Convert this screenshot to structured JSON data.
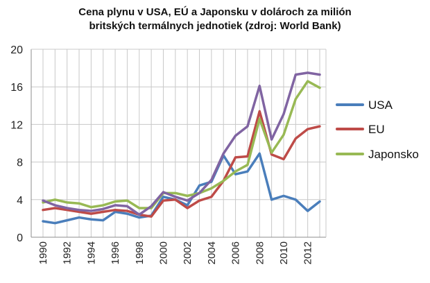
{
  "chart_data": {
    "type": "line",
    "title_lines": [
      "Cena plynu v USA, EÚ a Japonsku v dolároch za milión",
      "britských termálnych jednotiek (zdroj: World Bank)"
    ],
    "xlabel": "",
    "ylabel": "",
    "x": [
      1990,
      1991,
      1992,
      1993,
      1994,
      1995,
      1996,
      1997,
      1998,
      1999,
      2000,
      2001,
      2002,
      2003,
      2004,
      2005,
      2006,
      2007,
      2008,
      2009,
      2010,
      2011,
      2012,
      2013
    ],
    "xticks": [
      "1990",
      "1992",
      "1994",
      "1996",
      "1998",
      "2000",
      "2002",
      "2004",
      "2006",
      "2008",
      "2010",
      "2012"
    ],
    "yticks": [
      "0",
      "4",
      "8",
      "12",
      "16",
      "20"
    ],
    "ylim": [
      0,
      20
    ],
    "xlim": [
      1990,
      2013
    ],
    "grid": true,
    "legend_position": "right",
    "series": [
      {
        "name": "USA",
        "color": "#4a7ebb",
        "values": [
          1.7,
          1.5,
          1.8,
          2.1,
          1.9,
          1.8,
          2.7,
          2.5,
          2.1,
          2.3,
          4.3,
          4.0,
          3.4,
          5.5,
          5.9,
          8.7,
          6.7,
          7.0,
          8.9,
          4.0,
          4.4,
          4.0,
          2.8,
          3.8
        ]
      },
      {
        "name": "EU",
        "color": "#be4b48",
        "values": [
          2.9,
          3.1,
          2.9,
          2.7,
          2.5,
          2.7,
          2.9,
          2.8,
          2.4,
          2.2,
          3.9,
          4.0,
          3.1,
          3.9,
          4.3,
          6.0,
          8.5,
          8.6,
          13.4,
          8.8,
          8.3,
          10.5,
          11.5,
          11.8
        ]
      },
      {
        "name": "Japonsko",
        "color": "#98b954",
        "values": [
          3.7,
          4.0,
          3.7,
          3.6,
          3.2,
          3.4,
          3.8,
          3.9,
          3.1,
          3.1,
          4.7,
          4.7,
          4.4,
          4.7,
          5.2,
          6.0,
          7.0,
          7.7,
          12.6,
          9.0,
          10.9,
          14.7,
          16.6,
          15.9
        ]
      },
      {
        "name": "",
        "color": "#8064a2",
        "values": [
          3.9,
          3.4,
          3.1,
          2.9,
          2.8,
          3.0,
          3.4,
          3.3,
          2.4,
          3.3,
          4.8,
          4.3,
          3.9,
          4.7,
          6.1,
          8.9,
          10.8,
          11.8,
          16.1,
          10.4,
          13.1,
          17.3,
          17.5,
          17.3
        ]
      }
    ]
  }
}
